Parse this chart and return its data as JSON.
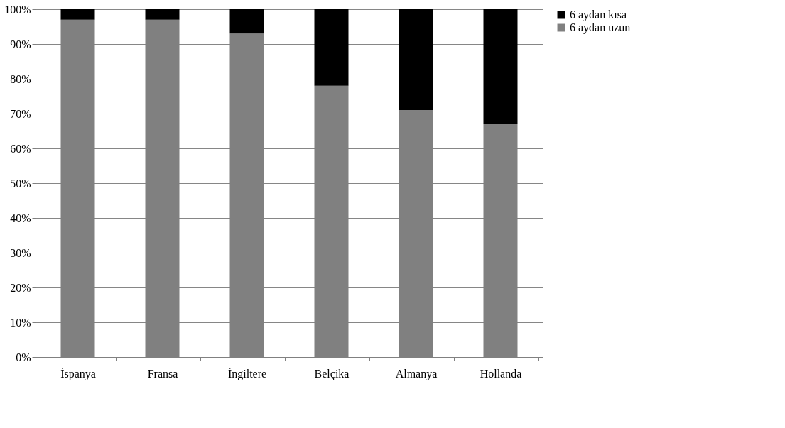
{
  "chart_data": {
    "type": "bar",
    "stacked": true,
    "categories": [
      "İspanya",
      "Fransa",
      "İngiltere",
      "Belçika",
      "Almanya",
      "Hollanda"
    ],
    "series": [
      {
        "name": "6 aydan uzun",
        "color": "#808080",
        "values": [
          97,
          97,
          93,
          78,
          71,
          67
        ]
      },
      {
        "name": "6 aydan kısa",
        "color": "#000000",
        "values": [
          3,
          3,
          7,
          22,
          29,
          33
        ]
      }
    ],
    "ylim": [
      0,
      100
    ],
    "yticks": [
      {
        "value": 0,
        "label": "0%"
      },
      {
        "value": 10,
        "label": "10%"
      },
      {
        "value": 20,
        "label": "20%"
      },
      {
        "value": 30,
        "label": "30%"
      },
      {
        "value": 40,
        "label": "40%"
      },
      {
        "value": 50,
        "label": "50%"
      },
      {
        "value": 60,
        "label": "60%"
      },
      {
        "value": 70,
        "label": "70%"
      },
      {
        "value": 80,
        "label": "80%"
      },
      {
        "value": 90,
        "label": "90%"
      },
      {
        "value": 100,
        "label": "100%"
      }
    ],
    "grid": "y",
    "legend": "right"
  }
}
